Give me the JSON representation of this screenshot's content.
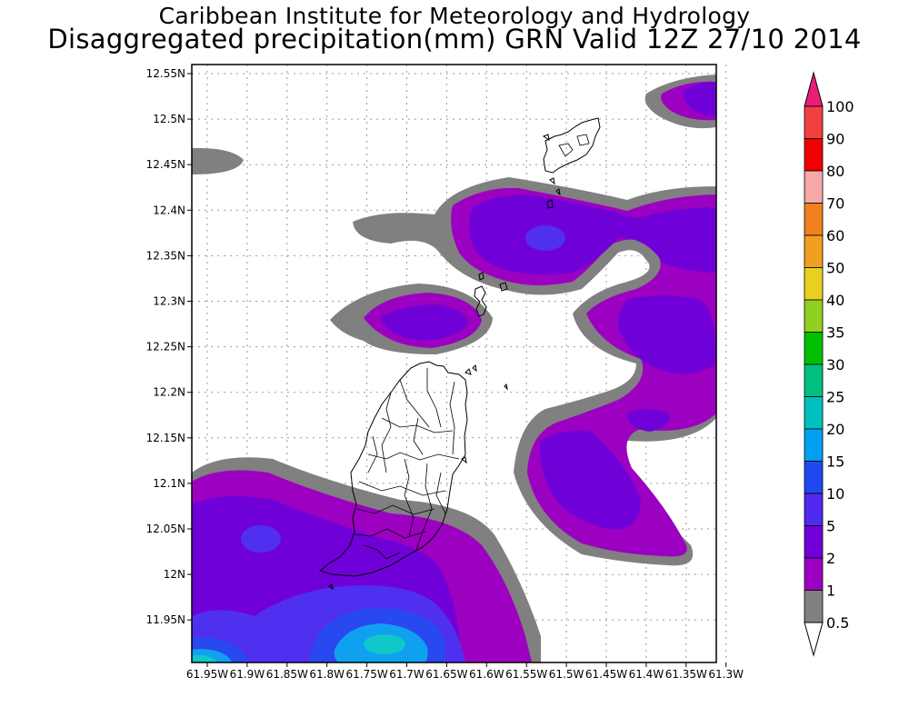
{
  "header": {
    "line1": "Caribbean Institute for Meteorology and Hydrology",
    "line2": "Disaggregated precipitation(mm) GRN Valid 12Z 27/10 2014"
  },
  "map": {
    "region": "Grenada and the Southern Grenadines",
    "variable": "precipitation",
    "units": "mm",
    "lat_ticks": [
      "12.55N",
      "12.5N",
      "12.45N",
      "12.4N",
      "12.35N",
      "12.3N",
      "12.25N",
      "12.2N",
      "12.15N",
      "12.1N",
      "12.05N",
      "12N",
      "11.95N"
    ],
    "lon_ticks": [
      "61.95W",
      "61.9W",
      "61.85W",
      "61.8W",
      "61.75W",
      "61.7W",
      "61.65W",
      "61.6W",
      "61.55W",
      "61.5W",
      "61.45W",
      "61.4W",
      "61.35W",
      "61.3W"
    ],
    "colors": {
      "c05": "#808080",
      "c1": "#9c00c0",
      "c2": "#7000d8",
      "c5": "#5030f0",
      "c10": "#2848f0",
      "c15": "#10a0f0",
      "c20": "#10c8c8"
    }
  },
  "legend": {
    "labels": [
      "100",
      "90",
      "80",
      "70",
      "60",
      "50",
      "40",
      "35",
      "30",
      "25",
      "20",
      "15",
      "10",
      "5",
      "2",
      "1",
      "0.5"
    ],
    "colors": [
      "#e81e78",
      "#f04040",
      "#f00000",
      "#f4a8a8",
      "#f08020",
      "#f0a020",
      "#e8d020",
      "#90d020",
      "#00c000",
      "#00c080",
      "#00c0c0",
      "#00a0f0",
      "#2048f0",
      "#5028f0",
      "#7000d8",
      "#9c00c0",
      "#808080"
    ]
  }
}
